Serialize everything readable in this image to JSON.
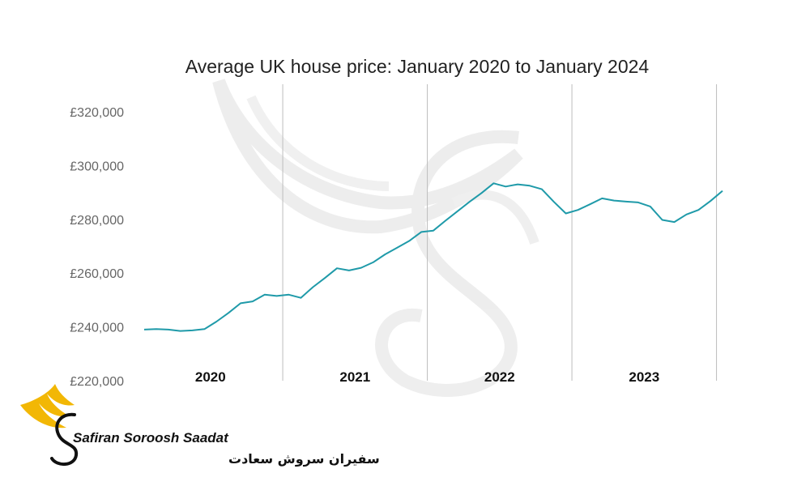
{
  "chart_data": {
    "type": "line",
    "title": "Average UK house price: January 2020 to January 2024",
    "ylim": [
      220000,
      320000
    ],
    "yticks": [
      {
        "value": 220000,
        "label": "£220,000"
      },
      {
        "value": 240000,
        "label": "£240,000"
      },
      {
        "value": 260000,
        "label": "£260,000"
      },
      {
        "value": 280000,
        "label": "£280,000"
      },
      {
        "value": 300000,
        "label": "£300,000"
      },
      {
        "value": 320000,
        "label": "£320,000"
      }
    ],
    "year_labels": [
      "2020",
      "2021",
      "2022",
      "2023"
    ],
    "grid": "vertical separators between years",
    "series": [
      {
        "color": "#1f9aa9",
        "x": [
          "2020-01",
          "2020-02",
          "2020-03",
          "2020-04",
          "2020-05",
          "2020-06",
          "2020-07",
          "2020-08",
          "2020-09",
          "2020-10",
          "2020-11",
          "2020-12",
          "2021-01",
          "2021-02",
          "2021-03",
          "2021-04",
          "2021-05",
          "2021-06",
          "2021-07",
          "2021-08",
          "2021-09",
          "2021-10",
          "2021-11",
          "2021-12",
          "2022-01",
          "2022-02",
          "2022-03",
          "2022-04",
          "2022-05",
          "2022-06",
          "2022-07",
          "2022-08",
          "2022-09",
          "2022-10",
          "2022-11",
          "2022-12",
          "2023-01",
          "2023-02",
          "2023-03",
          "2023-04",
          "2023-05",
          "2023-06",
          "2023-07",
          "2023-08",
          "2023-09",
          "2023-10",
          "2023-11",
          "2023-12",
          "2024-01"
        ],
        "values": [
          239000,
          239200,
          239000,
          238500,
          238700,
          239200,
          242000,
          245200,
          248800,
          249500,
          252000,
          251500,
          252000,
          250800,
          254800,
          258200,
          261800,
          261000,
          262000,
          264000,
          267000,
          269500,
          272000,
          275300,
          275800,
          279500,
          283000,
          286500,
          289800,
          293400,
          292200,
          293000,
          292500,
          291200,
          286500,
          282200,
          283500,
          285600,
          287800,
          287000,
          286600,
          286300,
          284800,
          279800,
          279000,
          281800,
          283500,
          286800,
          290600
        ]
      }
    ]
  },
  "watermark": {
    "brand_en": "Safiran Soroosh Saadat",
    "brand_fa": "سفیران سروش سعادت",
    "logo_color": "#f2b705"
  }
}
